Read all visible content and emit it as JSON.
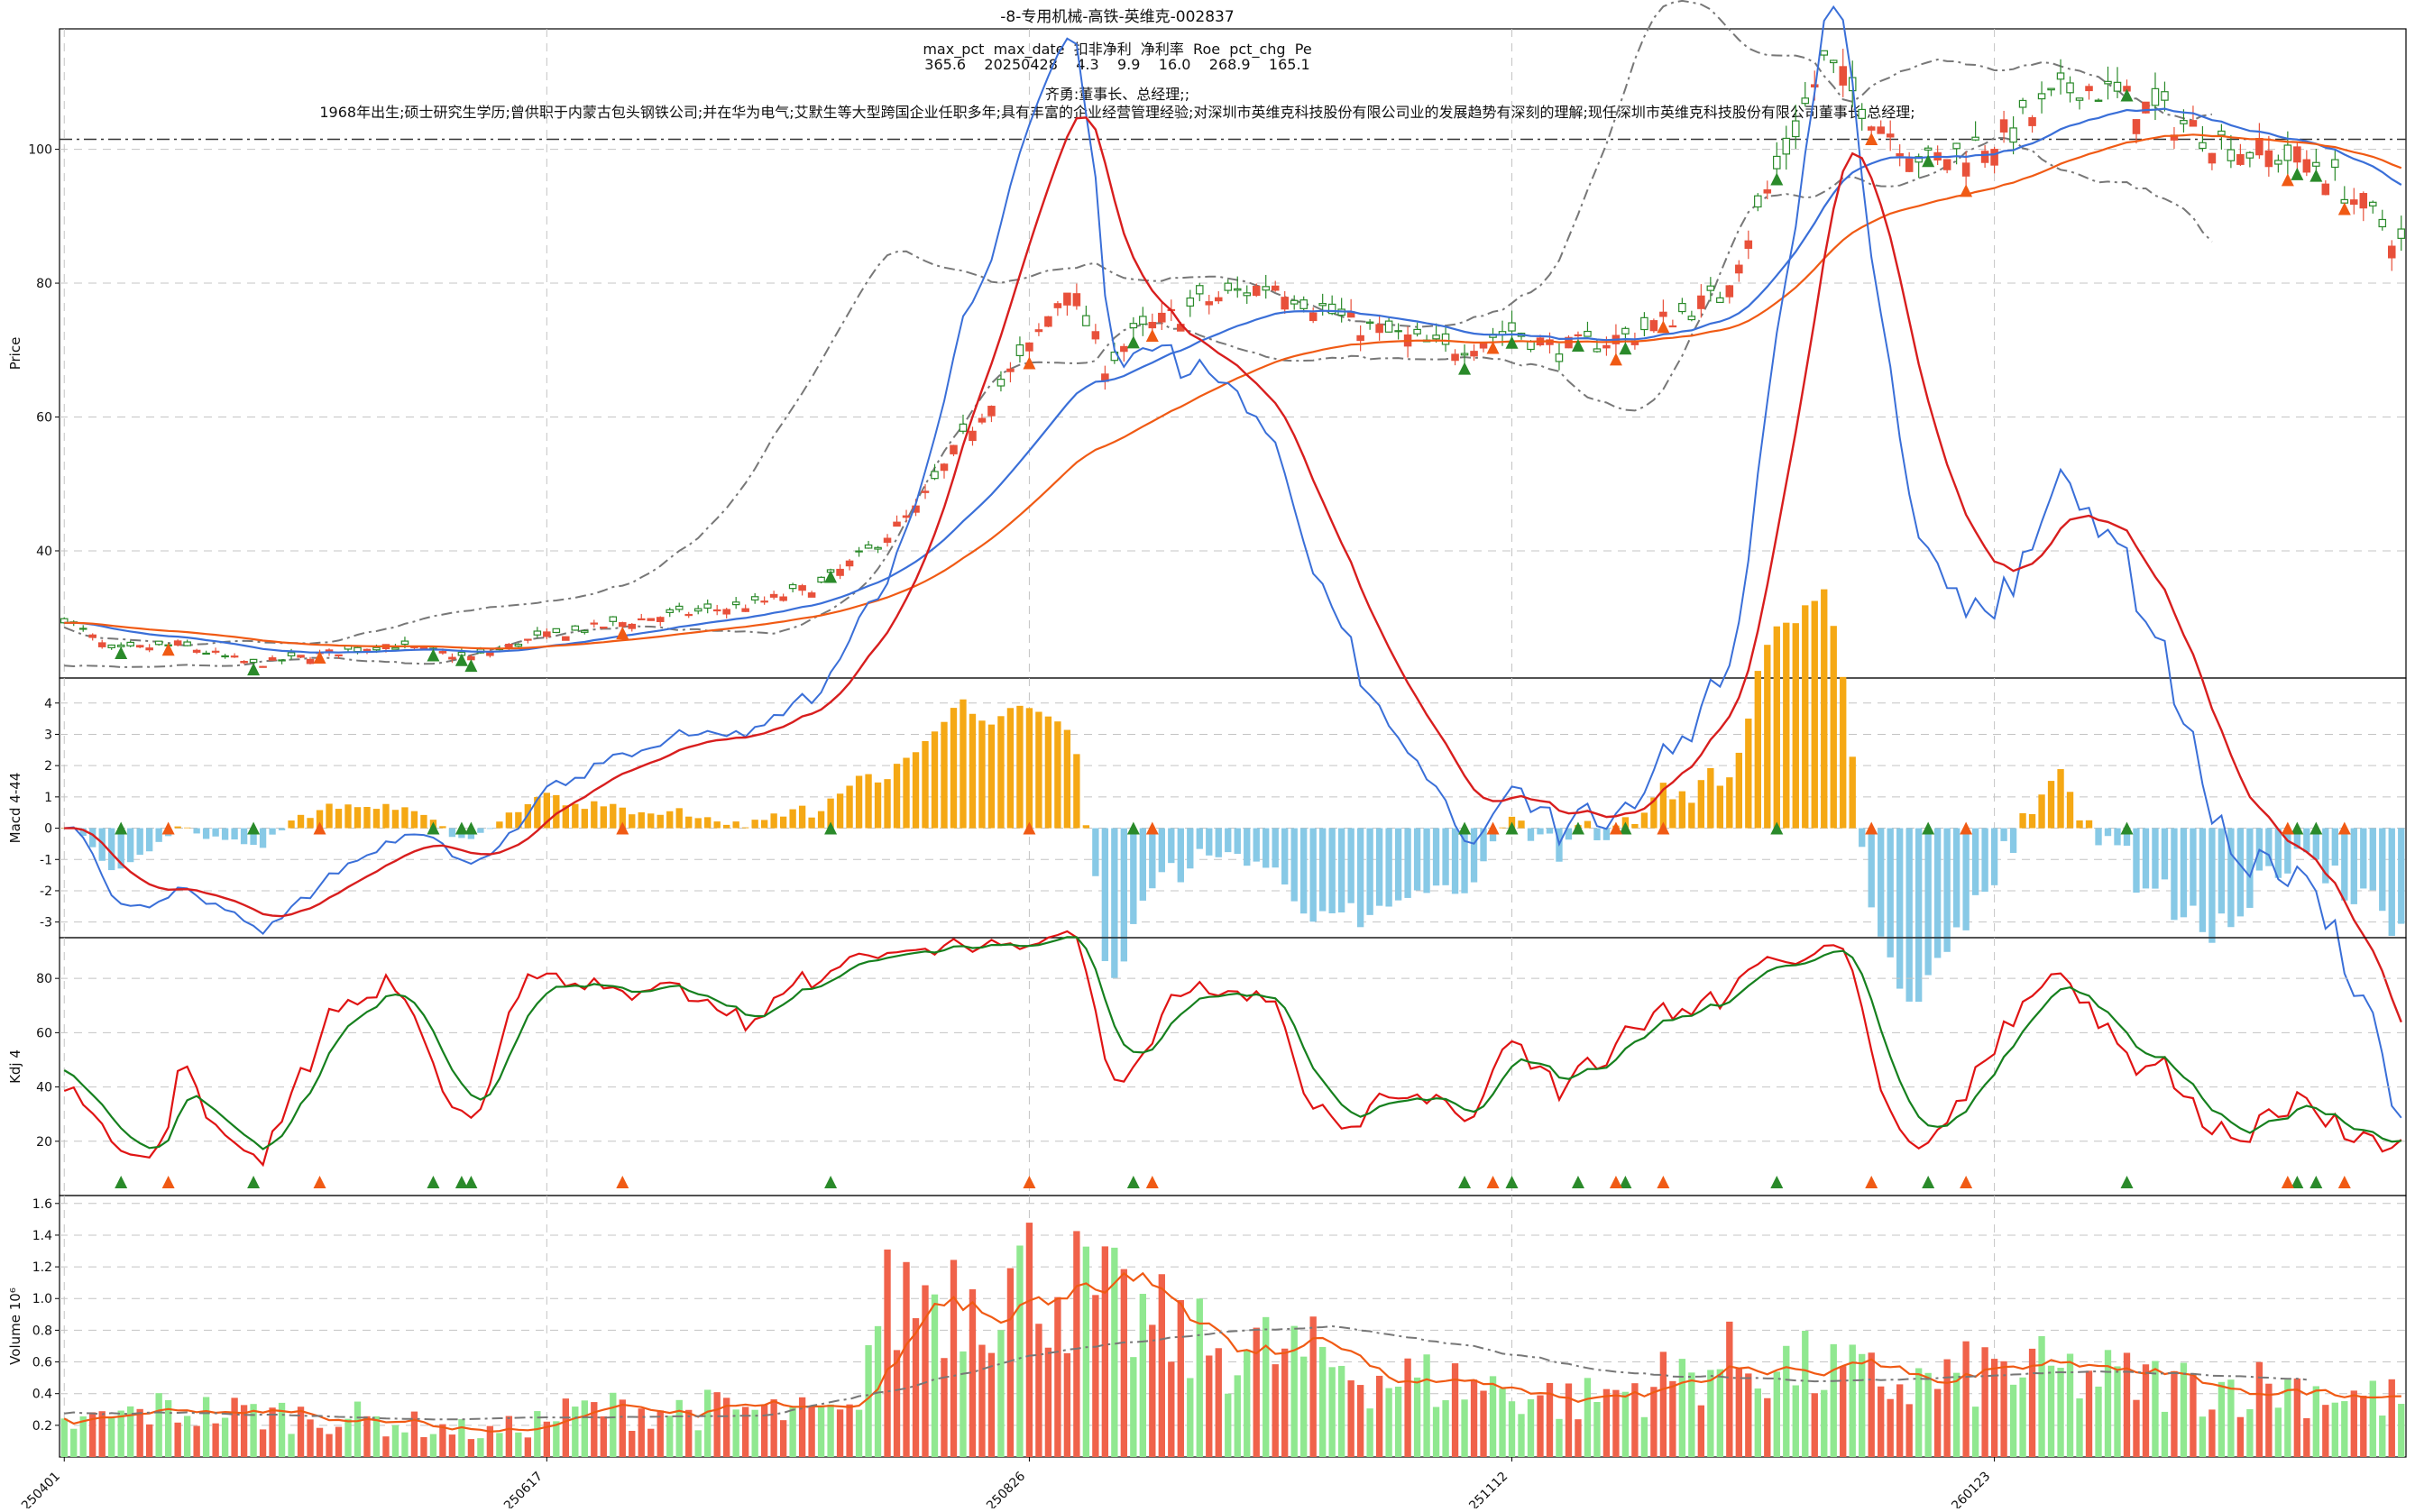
{
  "chart_data": {
    "type": "candlestick",
    "title": "-8-专用机械-高铁-英维克-002837",
    "header": {
      "columns": "max_pct  max_date  扣非净利  净利率  Roe  pct_chg  Pe",
      "values": "365.6    20250428    4.3    9.9    16.0    268.9    165.1",
      "person": "齐勇:董事长、总经理;;",
      "bio": "1968年出生;硕士研究生学历;曾供职于内蒙古包头钢铁公司;并在华为电气;艾默生等大型跨国企业任职多年;具有丰富的企业经营管理经验;对深圳市英维克科技股份有限公司业的发展趋势有深刻的理解;现任深圳市英维克科技股份有限公司董事长;总经理;"
    },
    "x_tick_labels": [
      "250401",
      "250617",
      "250826",
      "251112",
      "260123"
    ],
    "x_tick_index": [
      0,
      51,
      102,
      153,
      204
    ],
    "n_days": 248,
    "price_anchor_index": [
      0,
      5,
      12,
      20,
      34,
      43,
      50,
      62,
      73,
      80,
      85,
      90,
      98,
      102,
      106,
      110,
      113,
      120,
      128,
      136,
      146,
      153,
      158,
      165,
      175,
      182,
      186,
      192,
      197,
      205,
      213,
      222,
      230,
      238,
      247
    ],
    "price_anchor_close": [
      30,
      25,
      26,
      23,
      26,
      24,
      27,
      30,
      32,
      35,
      40,
      46,
      63,
      70,
      80,
      68,
      72,
      77,
      80,
      74,
      70,
      73,
      70,
      72,
      78,
      100,
      113,
      104,
      98,
      102,
      110,
      105,
      100,
      98,
      86
    ],
    "price_ylim": [
      21,
      118
    ],
    "price_yticks": [
      40,
      60,
      80,
      100
    ],
    "price_hline": 101.5,
    "ylabel_price": "Price",
    "macd_ylim": [
      -3.5,
      4.8
    ],
    "macd_yticks": [
      -3,
      -2,
      -1,
      0,
      1,
      2,
      3,
      4
    ],
    "ylabel_macd": "Macd 4-44",
    "kdj_ylim": [
      0,
      95
    ],
    "kdj_yticks": [
      20,
      40,
      60,
      80
    ],
    "ylabel_kdj": "Kdj 4",
    "volume_ylim": [
      0,
      1.65
    ],
    "volume_yticks": [
      0.2,
      0.4,
      0.6,
      0.8,
      1.0,
      1.2,
      1.4,
      1.6
    ],
    "ylabel_volume": "Volume",
    "volume_unit": "10⁶",
    "volume_anchor_index": [
      0,
      10,
      30,
      45,
      55,
      70,
      83,
      86,
      90,
      96,
      104,
      110,
      120,
      130,
      140,
      150,
      160,
      170,
      176,
      185,
      195,
      205,
      215,
      225,
      235,
      247
    ],
    "volume_anchor_value": [
      0.2,
      0.3,
      0.25,
      0.15,
      0.3,
      0.3,
      0.25,
      0.9,
      1.05,
      1.1,
      1.15,
      0.95,
      0.7,
      0.65,
      0.5,
      0.45,
      0.35,
      0.5,
      0.6,
      0.55,
      0.45,
      0.55,
      0.5,
      0.45,
      0.45,
      0.35
    ],
    "signal_up_index": [
      6,
      20,
      39,
      42,
      43,
      81,
      113,
      148,
      153,
      160,
      165,
      181,
      197,
      218,
      236,
      238
    ],
    "signal_down_index": [
      11,
      27,
      59,
      102,
      115,
      151,
      164,
      169,
      191,
      201,
      235,
      241
    ],
    "colors": {
      "up": "#e8503a",
      "down": "#2a8a2a",
      "ma_fast": "#3a6fd8",
      "ma_slow": "#f05a14",
      "band": "#777777",
      "macd_pos": "#f5a814",
      "macd_neg": "#87c9e6",
      "dif": "#3a6fd8",
      "dea": "#d81e1e",
      "k_line": "#e01414",
      "d_line": "#16801e",
      "vol_up": "#f0624a",
      "vol_down": "#90e890",
      "vol_ma": "#f05a14",
      "vol_ma_long": "#777777",
      "grid": "#c4c4c4"
    }
  }
}
